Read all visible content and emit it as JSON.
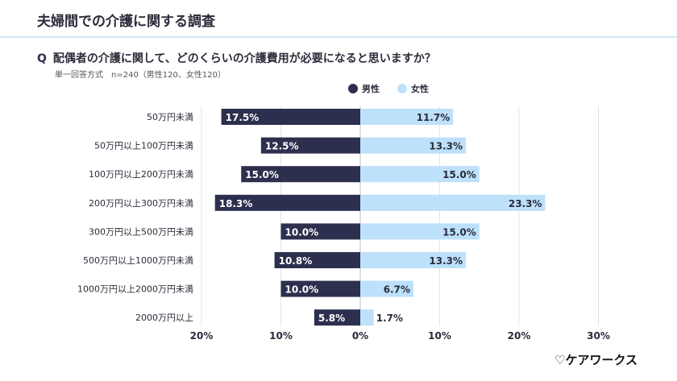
{
  "header": {
    "title": "夫婦間での介護に関する調査"
  },
  "question": {
    "mark": "Q",
    "text": "配偶者の介護に関して、どのくらいの介護費用が必要になると思いますか？",
    "note": "単一回答方式　n=240（男性120、女性120）"
  },
  "logo": {
    "text": "♡ケアワークス"
  },
  "colors": {
    "male": "#2d2f4e",
    "female": "#bde0fb",
    "grid": "#e4e4e4"
  },
  "chart_data": {
    "type": "bar",
    "orientation": "horizontal-diverging",
    "categories": [
      "50万円未満",
      "50万円以上100万円未満",
      "100万円以上200万円未満",
      "200万円以上300万円未満",
      "300万円以上500万円未満",
      "500万円以上1000万円未満",
      "1000万円以上2000万円未満",
      "2000万円以上"
    ],
    "series": [
      {
        "name": "男性",
        "side": "left",
        "values": [
          17.5,
          12.5,
          15.0,
          18.3,
          10.0,
          10.8,
          10.0,
          5.8
        ]
      },
      {
        "name": "女性",
        "side": "right",
        "values": [
          11.7,
          13.3,
          15.0,
          23.3,
          15.0,
          13.3,
          6.7,
          1.7
        ]
      }
    ],
    "xlim": [
      -20,
      30
    ],
    "ticks": [
      -20,
      -10,
      0,
      10,
      20,
      30
    ],
    "tick_labels": [
      "20%",
      "10%",
      "0%",
      "10%",
      "20%",
      "30%"
    ],
    "grid": true,
    "legend": "top-center"
  }
}
